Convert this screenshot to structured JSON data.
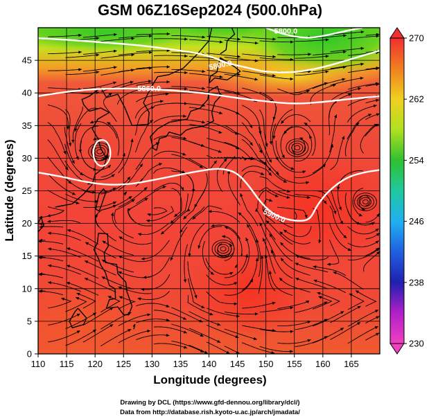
{
  "title": "GSM 06Z16Sep2024 (500.0hPa)",
  "xlabel": "Longitude (degrees)",
  "ylabel": "Latitude  (degrees)",
  "credits": [
    "Drawing by DCL (https://www.gfd-dennou.org/library/dcl/)",
    "Data from http://database.rish.kyoto-u.ac.jp/arch/jmadata/"
  ],
  "colors": {
    "field_base": "#ef4a38",
    "field_warm": "#f23a2c",
    "field_orange": "#f58a20",
    "field_yellow": "#e6e31a",
    "field_green": "#40d020",
    "contour": "#ffffff",
    "streamline": "#000000"
  },
  "chart_data": {
    "type": "heatmap",
    "title": "GSM 06Z16Sep2024 (500.0hPa)",
    "xlabel": "Longitude (degrees)",
    "ylabel": "Latitude  (degrees)",
    "xlim": [
      110,
      170
    ],
    "ylim": [
      0,
      50
    ],
    "xticks": [
      "110",
      "115",
      "120",
      "125",
      "130",
      "135",
      "140",
      "145",
      "150",
      "155",
      "160",
      "165"
    ],
    "yticks": [
      "0",
      "5",
      "10",
      "15",
      "20",
      "25",
      "30",
      "35",
      "40",
      "45"
    ],
    "grid": true,
    "colorbar": {
      "orientation": "vertical",
      "placement": "right",
      "min": 230,
      "max": 270,
      "tick_labels": [
        "230",
        "238",
        "246",
        "254",
        "262",
        "270"
      ],
      "stops": [
        {
          "value": 230,
          "color": "#f040c0"
        },
        {
          "value": 234,
          "color": "#b020c8"
        },
        {
          "value": 238,
          "color": "#2020b0"
        },
        {
          "value": 242,
          "color": "#2060e0"
        },
        {
          "value": 246,
          "color": "#20b0f0"
        },
        {
          "value": 250,
          "color": "#20c8a0"
        },
        {
          "value": 254,
          "color": "#30c030"
        },
        {
          "value": 258,
          "color": "#b0e020"
        },
        {
          "value": 262,
          "color": "#f0d020"
        },
        {
          "value": 266,
          "color": "#f08020"
        },
        {
          "value": 270,
          "color": "#f03030"
        }
      ]
    },
    "contours": [
      {
        "label": "5800.0",
        "label_at": {
          "lon": 142,
          "lat": 44.3
        },
        "points": [
          [
            110,
            48.4
          ],
          [
            116,
            48.1
          ],
          [
            122,
            47.7
          ],
          [
            128,
            47.3
          ],
          [
            134,
            46.6
          ],
          [
            138,
            46.1
          ],
          [
            141,
            45.4
          ],
          [
            143,
            44.6
          ],
          [
            147,
            43.8
          ],
          [
            150,
            43.2
          ],
          [
            155,
            43.1
          ],
          [
            160,
            43.9
          ],
          [
            165,
            45.2
          ],
          [
            170,
            46.5
          ]
        ]
      },
      {
        "label": "5800.0",
        "label_at": {
          "lon": 153.5,
          "lat": 49.5
        },
        "points": [
          [
            150,
            50
          ],
          [
            152,
            49.3
          ],
          [
            155,
            48.6
          ],
          [
            158,
            48.4
          ],
          [
            161,
            48.9
          ],
          [
            164,
            49.5
          ],
          [
            167,
            50
          ]
        ]
      },
      {
        "label": "5860.0",
        "label_at": {
          "lon": 129.5,
          "lat": 40.7
        },
        "points": [
          [
            110,
            39.5
          ],
          [
            115,
            40.2
          ],
          [
            120,
            40.6
          ],
          [
            125,
            40.7
          ],
          [
            130,
            40.6
          ],
          [
            135,
            40.3
          ],
          [
            140,
            39.9
          ],
          [
            145,
            39.2
          ],
          [
            150,
            38.7
          ],
          [
            155,
            38.3
          ],
          [
            160,
            38.6
          ],
          [
            165,
            39.1
          ],
          [
            170,
            39.5
          ]
        ]
      },
      {
        "label": "5900.0",
        "label_at": {
          "lon": 151.5,
          "lat": 21.2
        },
        "points": [
          [
            110,
            27.8
          ],
          [
            114,
            27.2
          ],
          [
            118,
            26.4
          ],
          [
            122,
            25.9
          ],
          [
            126,
            26.0
          ],
          [
            130,
            26.6
          ],
          [
            134,
            27.3
          ],
          [
            138,
            28.0
          ],
          [
            141,
            28.4
          ],
          [
            143,
            28.3
          ],
          [
            145,
            27.7
          ],
          [
            147,
            25.8
          ],
          [
            149,
            23.3
          ],
          [
            151,
            21.6
          ],
          [
            153,
            20.8
          ],
          [
            155,
            20.4
          ],
          [
            157,
            20.4
          ],
          [
            158,
            21.0
          ],
          [
            159,
            22.8
          ],
          [
            161,
            25.0
          ],
          [
            164,
            27.0
          ],
          [
            167,
            27.8
          ],
          [
            170,
            28.2
          ]
        ]
      },
      {
        "label": "",
        "closed": true,
        "center": {
          "lon": 121.2,
          "lat": 30.8
        },
        "radius_lon": 1.5,
        "radius_lat": 2.0
      }
    ],
    "vortices": [
      {
        "lon": 120.8,
        "lat": 31.0,
        "sense": "cyclonic"
      },
      {
        "lon": 155.5,
        "lat": 31.6,
        "sense": "cyclonic"
      },
      {
        "lon": 167.5,
        "lat": 23.3,
        "sense": "cyclonic"
      },
      {
        "lon": 142.5,
        "lat": 16.1,
        "sense": "cyclonic"
      }
    ]
  }
}
